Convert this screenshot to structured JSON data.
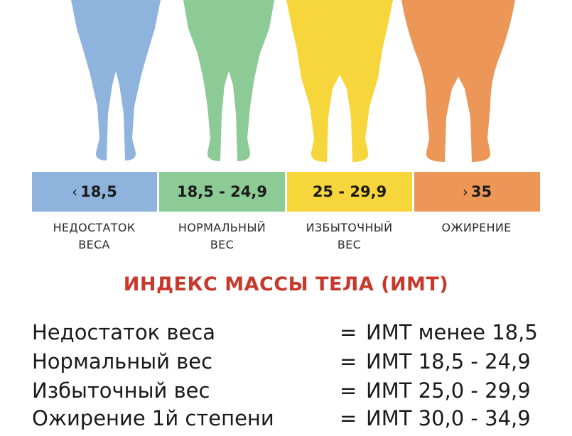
{
  "colors": {
    "underweight": "#8eb3dd",
    "normal": "#8ccb95",
    "overweight": "#f6d63a",
    "obese": "#ec9758",
    "title": "#c8392b"
  },
  "categories": [
    {
      "range_arrow": "‹",
      "range": "18,5",
      "caption_line1": "НЕДОСТАТОК",
      "caption_line2": "ВЕСА"
    },
    {
      "range_arrow": "",
      "range": "18,5 - 24,9",
      "caption_line1": "НОРМАЛЬНЫЙ",
      "caption_line2": "ВЕС"
    },
    {
      "range_arrow": "",
      "range": "25 - 29,9",
      "caption_line1": "ИЗБЫТОЧНЫЙ",
      "caption_line2": "ВЕС"
    },
    {
      "range_arrow": "›",
      "range": "35",
      "caption_line1": "ОЖИРЕНИЕ",
      "caption_line2": ""
    }
  ],
  "title": "ИНДЕКС МАССЫ ТЕЛА (ИМТ)",
  "rows": [
    {
      "label": "Недостаток веса",
      "eq": "=",
      "value": "ИМТ менее 18,5"
    },
    {
      "label": "Нормальный вес",
      "eq": "=",
      "value": "ИМТ 18,5 - 24,9"
    },
    {
      "label": "Избыточный вес",
      "eq": "=",
      "value": "ИМТ 25,0 - 29,9"
    },
    {
      "label": "Ожирение 1й степени",
      "eq": "=",
      "value": "ИМТ 30,0 - 34,9"
    }
  ]
}
